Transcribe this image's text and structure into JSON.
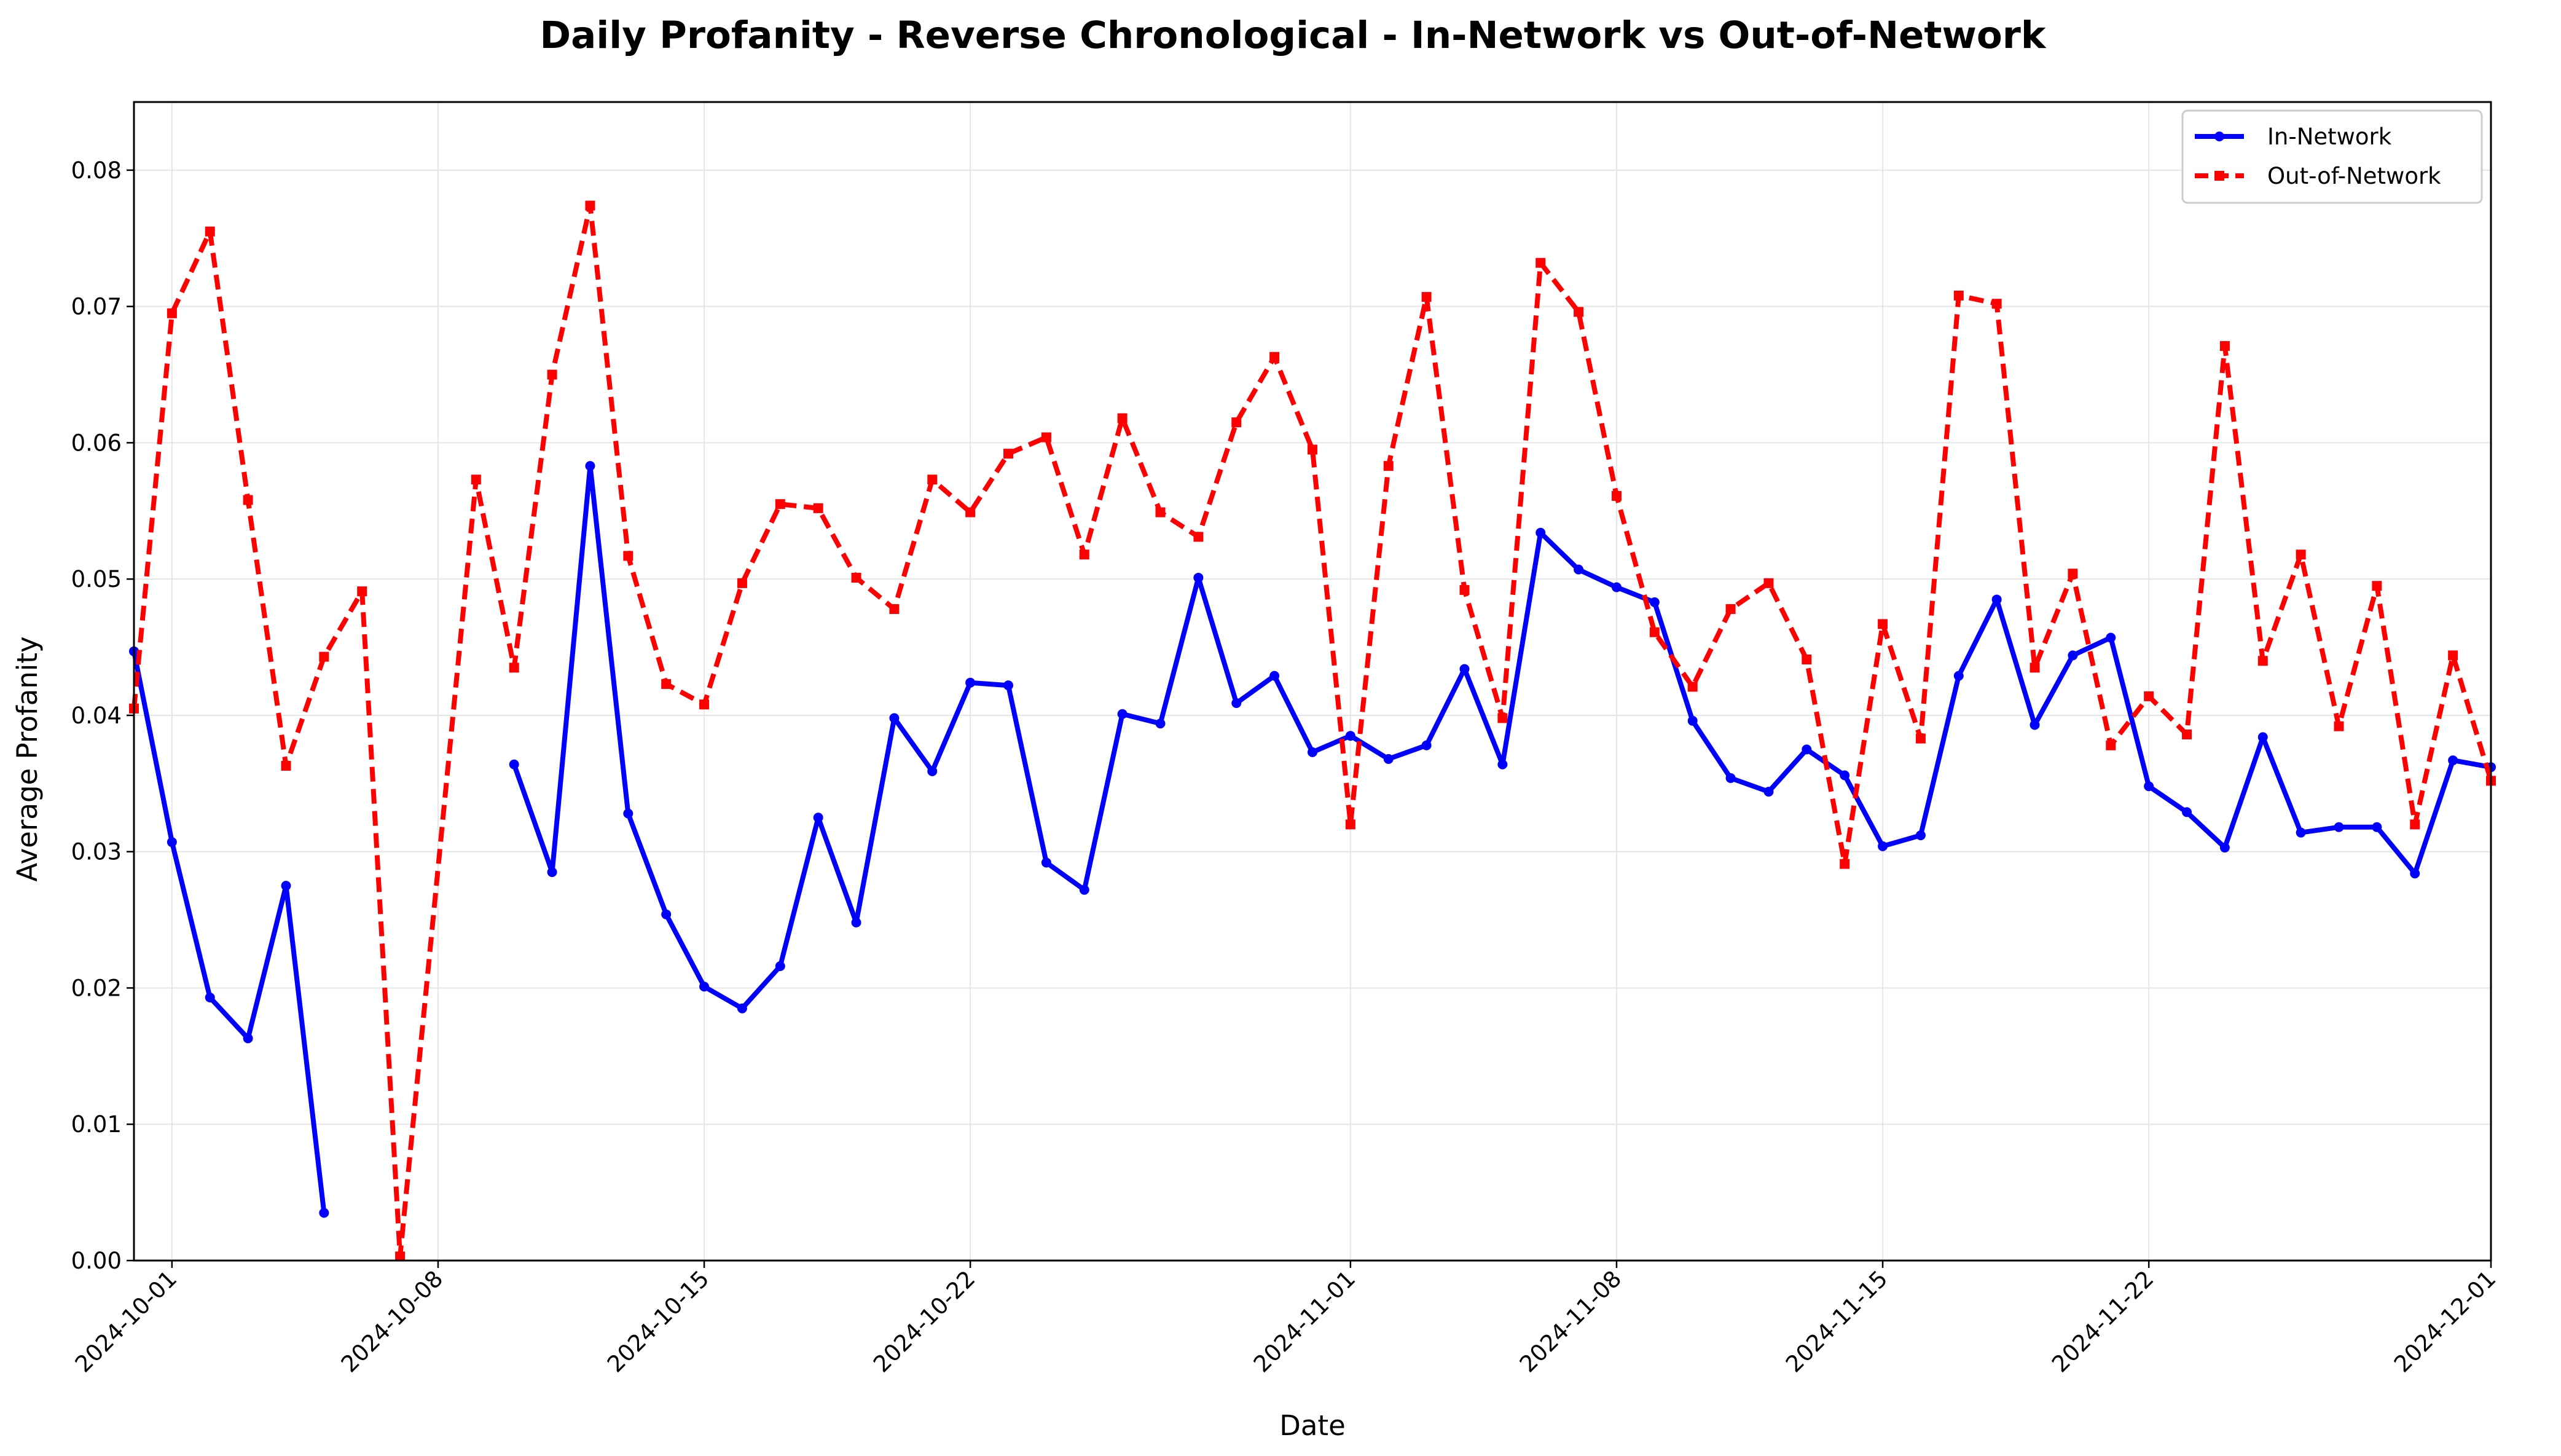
{
  "chart_data": {
    "type": "line",
    "title": "Daily Profanity - Reverse Chronological - In-Network vs Out-of-Network",
    "xlabel": "Date",
    "ylabel": "Average Profanity",
    "x_range": [
      "2024-09-30",
      "2024-12-01"
    ],
    "ylim": [
      0,
      0.085
    ],
    "x_ticks": [
      "2024-10-01",
      "2024-10-08",
      "2024-10-15",
      "2024-10-22",
      "2024-11-01",
      "2024-11-08",
      "2024-11-15",
      "2024-11-22",
      "2024-12-01"
    ],
    "y_ticks": [
      "0.00",
      "0.01",
      "0.02",
      "0.03",
      "0.04",
      "0.05",
      "0.06",
      "0.07",
      "0.08"
    ],
    "grid": true,
    "legend_position": "top-right",
    "series": [
      {
        "name": "In-Network",
        "color": "#0000ff",
        "style": "solid",
        "marker": "circle",
        "points": [
          [
            "2024-09-30",
            0.0447
          ],
          [
            "2024-10-01",
            0.0307
          ],
          [
            "2024-10-02",
            0.0193
          ],
          [
            "2024-10-03",
            0.0163
          ],
          [
            "2024-10-04",
            0.0275
          ],
          [
            "2024-10-05",
            0.0035
          ],
          [
            "2024-10-10",
            0.0364
          ],
          [
            "2024-10-11",
            0.0285
          ],
          [
            "2024-10-12",
            0.0583
          ],
          [
            "2024-10-13",
            0.0328
          ],
          [
            "2024-10-14",
            0.0254
          ],
          [
            "2024-10-15",
            0.0201
          ],
          [
            "2024-10-16",
            0.0185
          ],
          [
            "2024-10-17",
            0.0216
          ],
          [
            "2024-10-18",
            0.0325
          ],
          [
            "2024-10-19",
            0.0248
          ],
          [
            "2024-10-20",
            0.0398
          ],
          [
            "2024-10-21",
            0.0359
          ],
          [
            "2024-10-22",
            0.0424
          ],
          [
            "2024-10-23",
            0.0422
          ],
          [
            "2024-10-24",
            0.0292
          ],
          [
            "2024-10-25",
            0.0272
          ],
          [
            "2024-10-26",
            0.0401
          ],
          [
            "2024-10-27",
            0.0394
          ],
          [
            "2024-10-28",
            0.0501
          ],
          [
            "2024-10-29",
            0.0409
          ],
          [
            "2024-10-30",
            0.0429
          ],
          [
            "2024-10-31",
            0.0373
          ],
          [
            "2024-11-01",
            0.0385
          ],
          [
            "2024-11-02",
            0.0368
          ],
          [
            "2024-11-03",
            0.0378
          ],
          [
            "2024-11-04",
            0.0434
          ],
          [
            "2024-11-05",
            0.0364
          ],
          [
            "2024-11-06",
            0.0534
          ],
          [
            "2024-11-07",
            0.0507
          ],
          [
            "2024-11-08",
            0.0494
          ],
          [
            "2024-11-09",
            0.0483
          ],
          [
            "2024-11-10",
            0.0396
          ],
          [
            "2024-11-11",
            0.0354
          ],
          [
            "2024-11-12",
            0.0344
          ],
          [
            "2024-11-13",
            0.0375
          ],
          [
            "2024-11-14",
            0.0356
          ],
          [
            "2024-11-15",
            0.0304
          ],
          [
            "2024-11-16",
            0.0312
          ],
          [
            "2024-11-17",
            0.0429
          ],
          [
            "2024-11-18",
            0.0485
          ],
          [
            "2024-11-19",
            0.0393
          ],
          [
            "2024-11-20",
            0.0444
          ],
          [
            "2024-11-21",
            0.0457
          ],
          [
            "2024-11-22",
            0.0348
          ],
          [
            "2024-11-23",
            0.0329
          ],
          [
            "2024-11-24",
            0.0303
          ],
          [
            "2024-11-25",
            0.0384
          ],
          [
            "2024-11-26",
            0.0314
          ],
          [
            "2024-11-27",
            0.0318
          ],
          [
            "2024-11-28",
            0.0318
          ],
          [
            "2024-11-29",
            0.0284
          ],
          [
            "2024-11-30",
            0.0367
          ],
          [
            "2024-12-01",
            0.0362
          ]
        ]
      },
      {
        "name": "Out-of-Network",
        "color": "#ff0000",
        "style": "dashed",
        "marker": "square",
        "points": [
          [
            "2024-09-30",
            0.0405
          ],
          [
            "2024-10-01",
            0.0695
          ],
          [
            "2024-10-02",
            0.0755
          ],
          [
            "2024-10-03",
            0.0558
          ],
          [
            "2024-10-04",
            0.0363
          ],
          [
            "2024-10-05",
            0.0443
          ],
          [
            "2024-10-06",
            0.0491
          ],
          [
            "2024-10-07",
            0.0003
          ],
          [
            "2024-10-09",
            0.0573
          ],
          [
            "2024-10-10",
            0.0435
          ],
          [
            "2024-10-11",
            0.065
          ],
          [
            "2024-10-12",
            0.0774
          ],
          [
            "2024-10-13",
            0.0517
          ],
          [
            "2024-10-14",
            0.0423
          ],
          [
            "2024-10-15",
            0.0408
          ],
          [
            "2024-10-16",
            0.0497
          ],
          [
            "2024-10-17",
            0.0555
          ],
          [
            "2024-10-18",
            0.0552
          ],
          [
            "2024-10-19",
            0.0501
          ],
          [
            "2024-10-20",
            0.0478
          ],
          [
            "2024-10-21",
            0.0573
          ],
          [
            "2024-10-22",
            0.0549
          ],
          [
            "2024-10-23",
            0.0592
          ],
          [
            "2024-10-24",
            0.0604
          ],
          [
            "2024-10-25",
            0.0518
          ],
          [
            "2024-10-26",
            0.0618
          ],
          [
            "2024-10-27",
            0.0549
          ],
          [
            "2024-10-28",
            0.0531
          ],
          [
            "2024-10-29",
            0.0615
          ],
          [
            "2024-10-30",
            0.0663
          ],
          [
            "2024-10-31",
            0.0595
          ],
          [
            "2024-11-01",
            0.032
          ],
          [
            "2024-11-02",
            0.0583
          ],
          [
            "2024-11-03",
            0.0707
          ],
          [
            "2024-11-04",
            0.0492
          ],
          [
            "2024-11-05",
            0.0398
          ],
          [
            "2024-11-06",
            0.0732
          ],
          [
            "2024-11-07",
            0.0696
          ],
          [
            "2024-11-08",
            0.0561
          ],
          [
            "2024-11-09",
            0.0461
          ],
          [
            "2024-11-10",
            0.0421
          ],
          [
            "2024-11-11",
            0.0478
          ],
          [
            "2024-11-12",
            0.0497
          ],
          [
            "2024-11-13",
            0.0441
          ],
          [
            "2024-11-14",
            0.0291
          ],
          [
            "2024-11-15",
            0.0467
          ],
          [
            "2024-11-16",
            0.0383
          ],
          [
            "2024-11-17",
            0.0708
          ],
          [
            "2024-11-18",
            0.0702
          ],
          [
            "2024-11-19",
            0.0435
          ],
          [
            "2024-11-20",
            0.0504
          ],
          [
            "2024-11-21",
            0.0378
          ],
          [
            "2024-11-22",
            0.0414
          ],
          [
            "2024-11-23",
            0.0386
          ],
          [
            "2024-11-24",
            0.0671
          ],
          [
            "2024-11-25",
            0.044
          ],
          [
            "2024-11-26",
            0.0518
          ],
          [
            "2024-11-27",
            0.0392
          ],
          [
            "2024-11-28",
            0.0495
          ],
          [
            "2024-11-29",
            0.032
          ],
          [
            "2024-11-30",
            0.0444
          ],
          [
            "2024-12-01",
            0.0352
          ]
        ]
      }
    ]
  }
}
